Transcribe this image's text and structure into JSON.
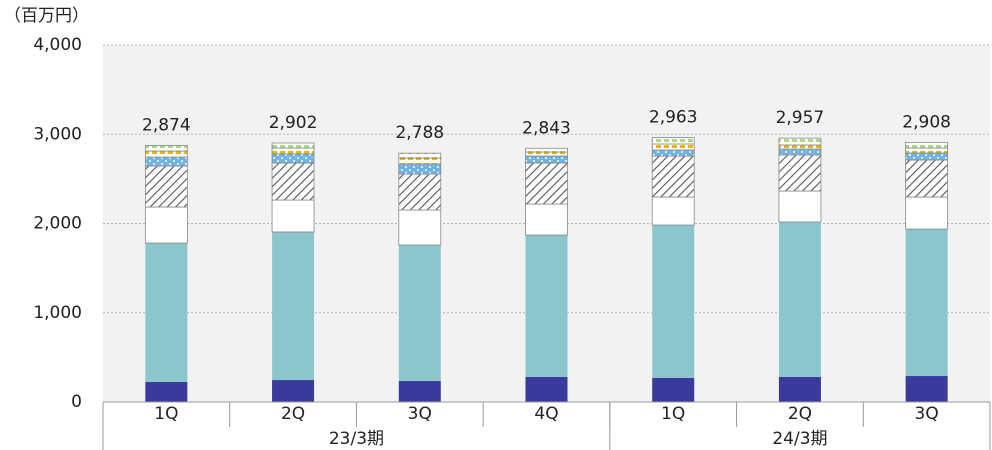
{
  "chart_data": {
    "type": "stacked_bar",
    "y_unit": "（百万円）",
    "categories": [
      "1Q",
      "2Q",
      "3Q",
      "4Q",
      "1Q",
      "2Q",
      "3Q"
    ],
    "groups": [
      {
        "label": "23/3期",
        "span": 4
      },
      {
        "label": "24/3期",
        "span": 3
      }
    ],
    "series": [
      {
        "color": "#3a3a9c",
        "pattern": "solid",
        "values": [
          224,
          246,
          235,
          280,
          269,
          280,
          291
        ]
      },
      {
        "color": "#8ac6cc",
        "pattern": "solid",
        "values": [
          1557,
          1659,
          1524,
          1591,
          1714,
          1737,
          1647
        ]
      },
      {
        "color": "#ffffff",
        "pattern": "solid",
        "values": [
          404,
          358,
          392,
          347,
          314,
          347,
          359
        ]
      },
      {
        "color": "#555555",
        "pattern": "hatch",
        "values": [
          459,
          415,
          404,
          460,
          459,
          404,
          414
        ]
      },
      {
        "color": "#6fb4e6",
        "pattern": "dots",
        "values": [
          101,
          101,
          112,
          78,
          68,
          67,
          79
        ]
      },
      {
        "color": "#f0b400",
        "pattern": "dashes",
        "values": [
          67,
          67,
          67,
          45,
          67,
          45,
          56
        ]
      },
      {
        "color": "#a8d88a",
        "pattern": "dashes",
        "values": [
          62,
          56,
          54,
          42,
          72,
          77,
          62
        ]
      }
    ],
    "totals": [
      2874,
      2902,
      2788,
      2843,
      2963,
      2957,
      2908
    ],
    "total_labels": [
      "2,874",
      "2,902",
      "2,788",
      "2,843",
      "2,963",
      "2,957",
      "2,908"
    ],
    "ylim": [
      0,
      4000
    ],
    "yticks": [
      0,
      {
        "value": 1000,
        "label": "1,000"
      },
      {
        "value": 2000,
        "label": "2,000"
      },
      {
        "value": 3000,
        "label": "3,000"
      },
      {
        "value": 4000,
        "label": "4,000"
      }
    ],
    "grid": true
  }
}
